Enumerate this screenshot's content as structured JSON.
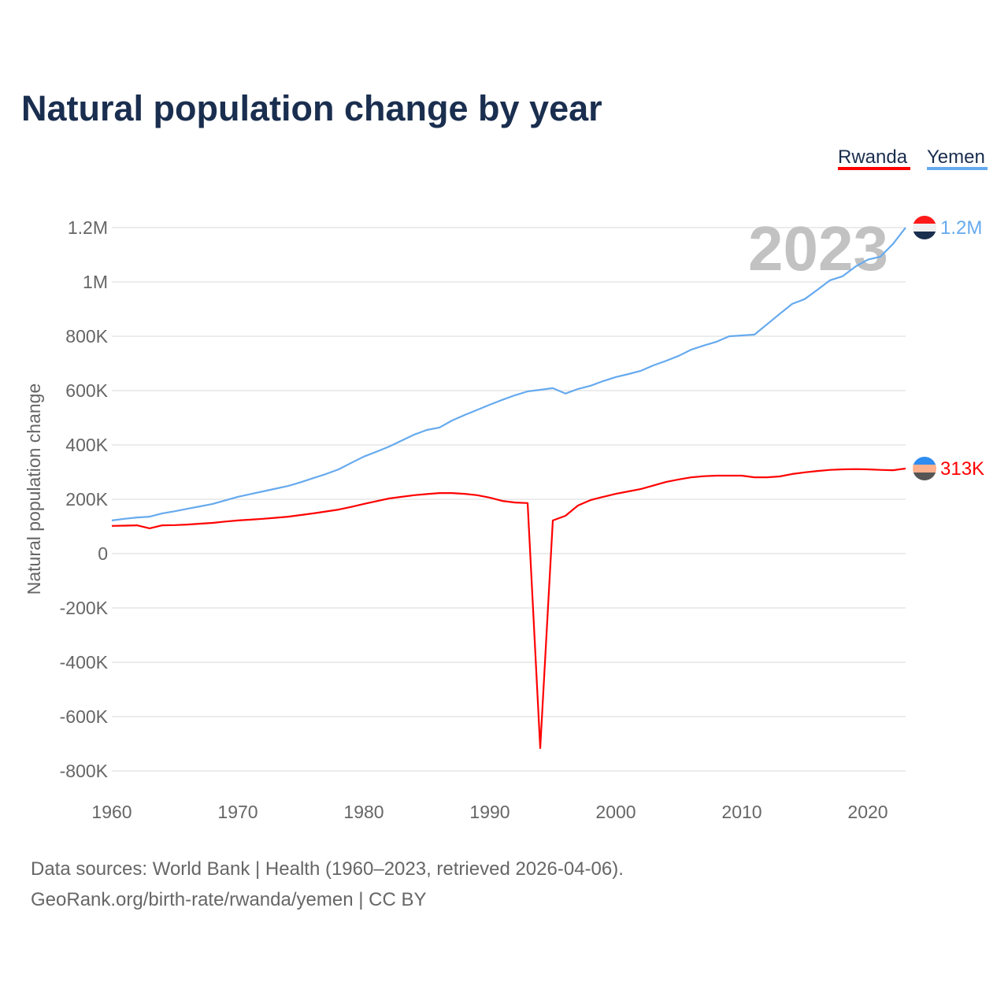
{
  "chart_data": {
    "type": "line",
    "title": "Natural population change by year",
    "xlabel": "",
    "ylabel": "Natural population change",
    "xlim": [
      1960,
      2023
    ],
    "ylim": [
      -800000,
      1200000
    ],
    "grid": true,
    "legend_position": "top-right",
    "x_ticks": [
      "1960",
      "1970",
      "1980",
      "1990",
      "2000",
      "2010",
      "2020"
    ],
    "y_ticks": [
      {
        "value": 1200000,
        "label": "1.2M"
      },
      {
        "value": 1000000,
        "label": "1M"
      },
      {
        "value": 800000,
        "label": "800K"
      },
      {
        "value": 600000,
        "label": "600K"
      },
      {
        "value": 400000,
        "label": "400K"
      },
      {
        "value": 200000,
        "label": "200K"
      },
      {
        "value": 0,
        "label": "0"
      },
      {
        "value": -200000,
        "label": "-200K"
      },
      {
        "value": -400000,
        "label": "-400K"
      },
      {
        "value": -600000,
        "label": "-600K"
      },
      {
        "value": -800000,
        "label": "-800K"
      }
    ],
    "x_start": 1960,
    "unit_multiplier": 1000,
    "series": [
      {
        "name": "Rwanda",
        "color": "#ff0000",
        "end_label": "313K",
        "flag_colors": [
          "#2f8cf0",
          "#ffb08c",
          "#555555"
        ],
        "values": [
          102,
          103,
          104,
          93,
          104,
          105,
          107,
          110,
          113,
          118,
          122,
          125,
          128,
          132,
          136,
          142,
          148,
          155,
          162,
          172,
          183,
          193,
          203,
          209,
          215,
          219,
          223,
          223,
          220,
          215,
          206,
          194,
          188,
          186,
          -716,
          122,
          139,
          177,
          197,
          209,
          220,
          229,
          238,
          251,
          264,
          273,
          281,
          285,
          287,
          287,
          287,
          281,
          281,
          284,
          293,
          299,
          304,
          308,
          310,
          311,
          310,
          308,
          307,
          313
        ]
      },
      {
        "name": "Yemen",
        "color": "#66aaee",
        "end_label": "1.2M",
        "flag_colors": [
          "#ff1a1a",
          "#f0f0f0",
          "#1a2e4f"
        ],
        "values": [
          122,
          128,
          133,
          136,
          148,
          156,
          165,
          174,
          183,
          196,
          209,
          219,
          229,
          239,
          249,
          263,
          278,
          293,
          310,
          334,
          357,
          375,
          394,
          416,
          438,
          455,
          464,
          490,
          510,
          529,
          548,
          566,
          583,
          597,
          603,
          609,
          589,
          606,
          618,
          635,
          650,
          661,
          673,
          693,
          710,
          728,
          751,
          766,
          780,
          800,
          803,
          806,
          844,
          882,
          919,
          937,
          971,
          1006,
          1021,
          1056,
          1082,
          1093,
          1140,
          1200
        ]
      }
    ],
    "annotations": {
      "year_watermark": "2023"
    }
  },
  "footer": {
    "line1": "Data sources: World Bank | Health (1960–2023, retrieved 2026-04-06).",
    "line2": "GeoRank.org/birth-rate/rwanda/yemen | CC BY"
  }
}
